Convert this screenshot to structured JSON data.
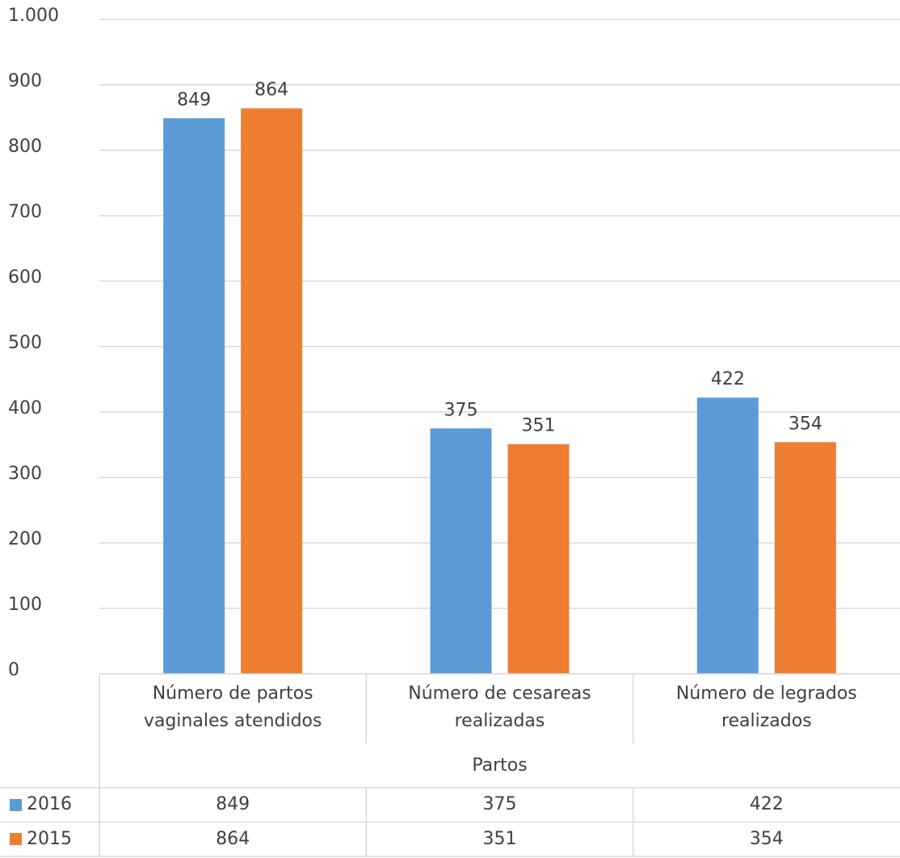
{
  "chart_data": {
    "type": "bar",
    "x_label": "Partos",
    "categories": [
      "Número de partos vaginales atendidos",
      "Número de cesareas realizadas",
      "Número de legrados realizados"
    ],
    "series": [
      {
        "name": "2016",
        "color": "#5b9bd5",
        "values": [
          849,
          375,
          422
        ]
      },
      {
        "name": "2015",
        "color": "#ed7d31",
        "values": [
          864,
          351,
          354
        ]
      }
    ],
    "ylim": [
      0,
      1000
    ],
    "yticks": [
      0,
      100,
      200,
      300,
      400,
      500,
      600,
      700,
      800,
      900,
      {
        "value": 1000,
        "label": "1.000"
      }
    ],
    "grid": true,
    "data_labels": true,
    "data_table": true
  }
}
